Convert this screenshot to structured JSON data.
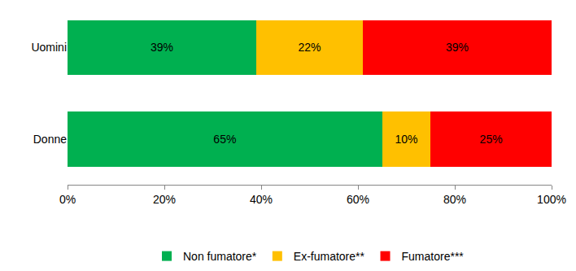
{
  "chart_data": {
    "type": "bar",
    "orientation": "horizontal",
    "stacked": true,
    "categories": [
      "Uomini",
      "Donne"
    ],
    "series": [
      {
        "name": "Non fumatore*",
        "color": "#00b050",
        "values": [
          39,
          65
        ],
        "value_labels": [
          "39%",
          "65%"
        ]
      },
      {
        "name": "Ex-fumatore**",
        "color": "#ffc000",
        "values": [
          22,
          10
        ],
        "value_labels": [
          "22%",
          "10%"
        ]
      },
      {
        "name": "Fumatore***",
        "color": "#ff0000",
        "values": [
          39,
          25
        ],
        "value_labels": [
          "39%",
          "25%"
        ]
      }
    ],
    "xlim": [
      0,
      100
    ],
    "xticks": [
      {
        "value": 0,
        "label": "0%"
      },
      {
        "value": 20,
        "label": "20%"
      },
      {
        "value": 40,
        "label": "40%"
      },
      {
        "value": 60,
        "label": "60%"
      },
      {
        "value": 80,
        "label": "80%"
      },
      {
        "value": 100,
        "label": "100%"
      }
    ],
    "grid": false,
    "data_labels": true,
    "legend": "bottom"
  }
}
